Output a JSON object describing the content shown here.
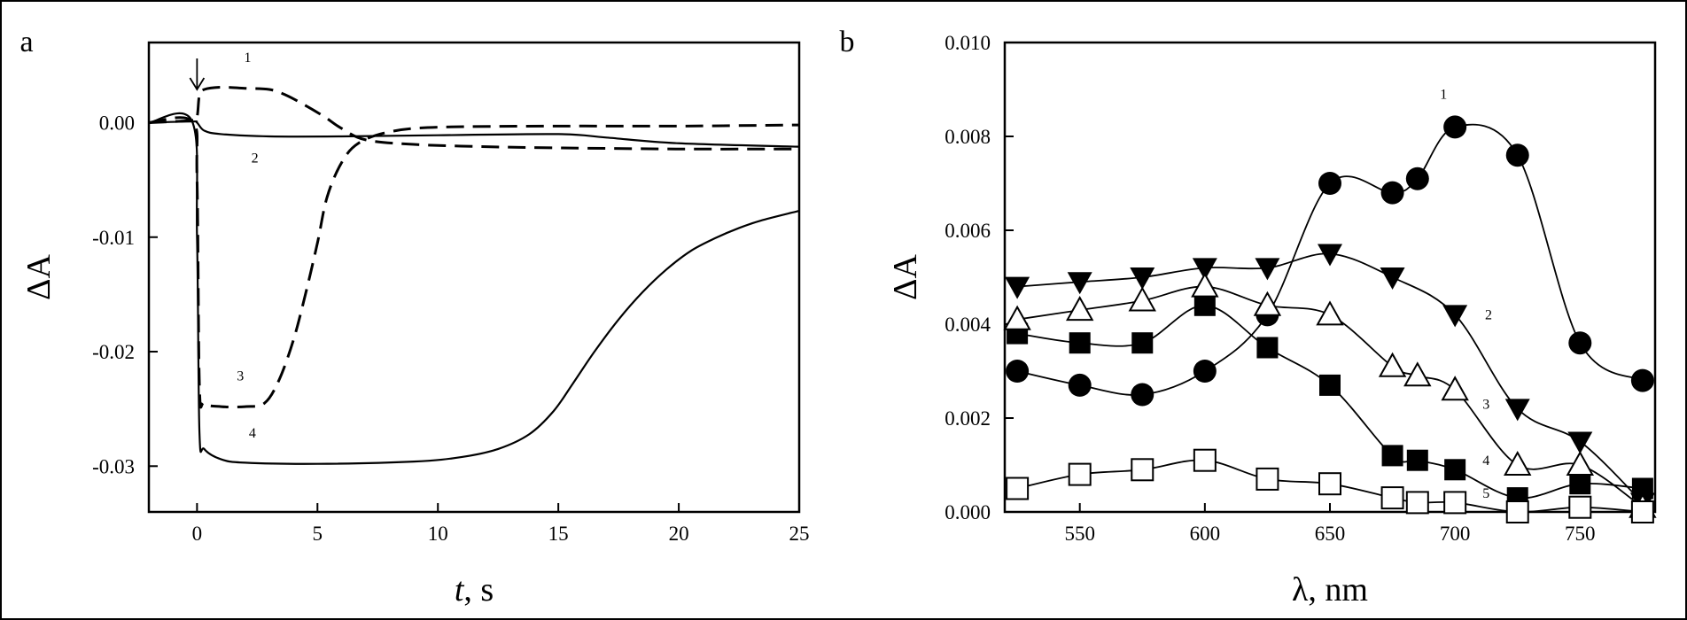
{
  "chart_data": [
    {
      "panel_label": "a",
      "type": "line",
      "xlabel_italic": "t",
      "xlabel_rest": ", s",
      "ylabel": "ΔA",
      "xlim": [
        -2,
        25
      ],
      "ylim": [
        -0.034,
        0.007
      ],
      "xticks": [
        0,
        5,
        10,
        15,
        20,
        25
      ],
      "xtick_labels": [
        "0",
        "5",
        "10",
        "15",
        "20",
        "25"
      ],
      "yticks": [
        0.0,
        -0.01,
        -0.02,
        -0.03
      ],
      "ytick_labels": [
        "0.00",
        "-0.01",
        "-0.02",
        "-0.03"
      ],
      "arrow_x": 0,
      "series": [
        {
          "name": "1",
          "style": "dashed",
          "label_at": [
            2.1,
            0.0053
          ],
          "points": [
            [
              -2,
              0
            ],
            [
              -0.2,
              0.0002
            ],
            [
              0,
              0.0005
            ],
            [
              0.1,
              0.0024
            ],
            [
              0.3,
              0.0029
            ],
            [
              1,
              0.0031
            ],
            [
              2,
              0.003
            ],
            [
              3,
              0.0029
            ],
            [
              3.7,
              0.0024
            ],
            [
              4.5,
              0.0015
            ],
            [
              5.3,
              0.0005
            ],
            [
              6,
              -0.0005
            ],
            [
              7,
              -0.0015
            ],
            [
              9,
              -0.0019
            ],
            [
              12,
              -0.0021
            ],
            [
              15,
              -0.0022
            ],
            [
              20,
              -0.0023
            ],
            [
              25,
              -0.0023
            ]
          ]
        },
        {
          "name": "2",
          "style": "solid",
          "label_at": [
            2.4,
            -0.0035
          ],
          "points": [
            [
              -2,
              0
            ],
            [
              -0.2,
              0.0001
            ],
            [
              0,
              0
            ],
            [
              0.3,
              -0.0007
            ],
            [
              1,
              -0.001
            ],
            [
              3,
              -0.0012
            ],
            [
              6,
              -0.0012
            ],
            [
              10,
              -0.0011
            ],
            [
              15,
              -0.001
            ],
            [
              17,
              -0.0013
            ],
            [
              20,
              -0.0018
            ],
            [
              25,
              -0.0021
            ]
          ]
        },
        {
          "name": "3",
          "style": "dashed",
          "label_at": [
            1.8,
            -0.0225
          ],
          "points": [
            [
              -2,
              0
            ],
            [
              -0.2,
              0.0001
            ],
            [
              0,
              -0.005
            ],
            [
              0.1,
              -0.023
            ],
            [
              0.3,
              -0.0245
            ],
            [
              1,
              -0.0248
            ],
            [
              2,
              -0.0248
            ],
            [
              2.8,
              -0.0245
            ],
            [
              3.4,
              -0.0225
            ],
            [
              4,
              -0.019
            ],
            [
              4.5,
              -0.015
            ],
            [
              5,
              -0.0105
            ],
            [
              5.4,
              -0.0065
            ],
            [
              6,
              -0.0035
            ],
            [
              6.7,
              -0.0018
            ],
            [
              8,
              -0.0008
            ],
            [
              10,
              -0.0004
            ],
            [
              15,
              -0.0003
            ],
            [
              20,
              -0.0003
            ],
            [
              25,
              -0.0002
            ]
          ]
        },
        {
          "name": "4",
          "style": "solid",
          "label_at": [
            2.3,
            -0.0275
          ],
          "points": [
            [
              -2,
              0
            ],
            [
              -0.2,
              0.0001
            ],
            [
              0,
              -0.01
            ],
            [
              0.1,
              -0.027
            ],
            [
              0.3,
              -0.0285
            ],
            [
              1,
              -0.0294
            ],
            [
              2,
              -0.0297
            ],
            [
              5,
              -0.0298
            ],
            [
              9,
              -0.0296
            ],
            [
              11,
              -0.0292
            ],
            [
              12.5,
              -0.0285
            ],
            [
              13.8,
              -0.0272
            ],
            [
              14.8,
              -0.0252
            ],
            [
              15.6,
              -0.0228
            ],
            [
              16.5,
              -0.02
            ],
            [
              17.5,
              -0.0172
            ],
            [
              18.5,
              -0.0148
            ],
            [
              19.5,
              -0.0128
            ],
            [
              20.5,
              -0.0112
            ],
            [
              21.5,
              -0.0101
            ],
            [
              22.5,
              -0.0092
            ],
            [
              23.5,
              -0.0085
            ],
            [
              25,
              -0.0077
            ]
          ]
        }
      ]
    },
    {
      "panel_label": "b",
      "type": "line",
      "xlabel": "λ, nm",
      "ylabel": "ΔA",
      "xlim": [
        520,
        780
      ],
      "ylim": [
        0,
        0.01
      ],
      "xticks": [
        550,
        600,
        650,
        700,
        750
      ],
      "xtick_labels": [
        "550",
        "600",
        "650",
        "700",
        "750"
      ],
      "yticks": [
        0,
        0.002,
        0.004,
        0.006,
        0.008,
        0.01
      ],
      "ytick_labels": [
        "0.000",
        "0.002",
        "0.004",
        "0.006",
        "0.008",
        "0.010"
      ],
      "series": [
        {
          "name": "1",
          "marker": "filled-circle",
          "label_at": [
            694,
            0.0088
          ],
          "x": [
            525,
            550,
            575,
            600,
            625,
            650,
            675,
            685,
            700,
            725,
            750,
            775
          ],
          "y": [
            0.003,
            0.0027,
            0.0025,
            0.003,
            0.0042,
            0.007,
            0.0068,
            0.0071,
            0.0082,
            0.0076,
            0.0036,
            0.0028
          ]
        },
        {
          "name": "2",
          "marker": "filled-triangle-down",
          "label_at": [
            712,
            0.0041
          ],
          "x": [
            525,
            550,
            575,
            600,
            625,
            650,
            675,
            700,
            725,
            750,
            775
          ],
          "y": [
            0.0048,
            0.0049,
            0.005,
            0.0052,
            0.0052,
            0.0055,
            0.005,
            0.0042,
            0.0022,
            0.0015,
            0.0002
          ]
        },
        {
          "name": "3",
          "marker": "open-triangle-up",
          "label_at": [
            711,
            0.0022
          ],
          "x": [
            525,
            550,
            575,
            600,
            625,
            650,
            675,
            685,
            700,
            725,
            750,
            775
          ],
          "y": [
            0.0041,
            0.0043,
            0.0045,
            0.0048,
            0.0044,
            0.0042,
            0.0031,
            0.0029,
            0.0026,
            0.001,
            0.001,
            0.0001
          ]
        },
        {
          "name": "4",
          "marker": "filled-square",
          "label_at": [
            711,
            0.001
          ],
          "x": [
            525,
            550,
            575,
            600,
            625,
            650,
            675,
            685,
            700,
            725,
            750,
            775
          ],
          "y": [
            0.0038,
            0.0036,
            0.0036,
            0.0044,
            0.0035,
            0.0027,
            0.0012,
            0.0011,
            0.0009,
            0.0003,
            0.0006,
            0.0005
          ]
        },
        {
          "name": "5",
          "marker": "open-square",
          "label_at": [
            711,
            0.0003
          ],
          "x": [
            525,
            550,
            575,
            600,
            625,
            650,
            675,
            685,
            700,
            725,
            750,
            775
          ],
          "y": [
            0.0005,
            0.0008,
            0.0009,
            0.0011,
            0.0007,
            0.0006,
            0.0003,
            0.0002,
            0.0002,
            0.0,
            0.0001,
            0.0
          ]
        }
      ]
    }
  ]
}
